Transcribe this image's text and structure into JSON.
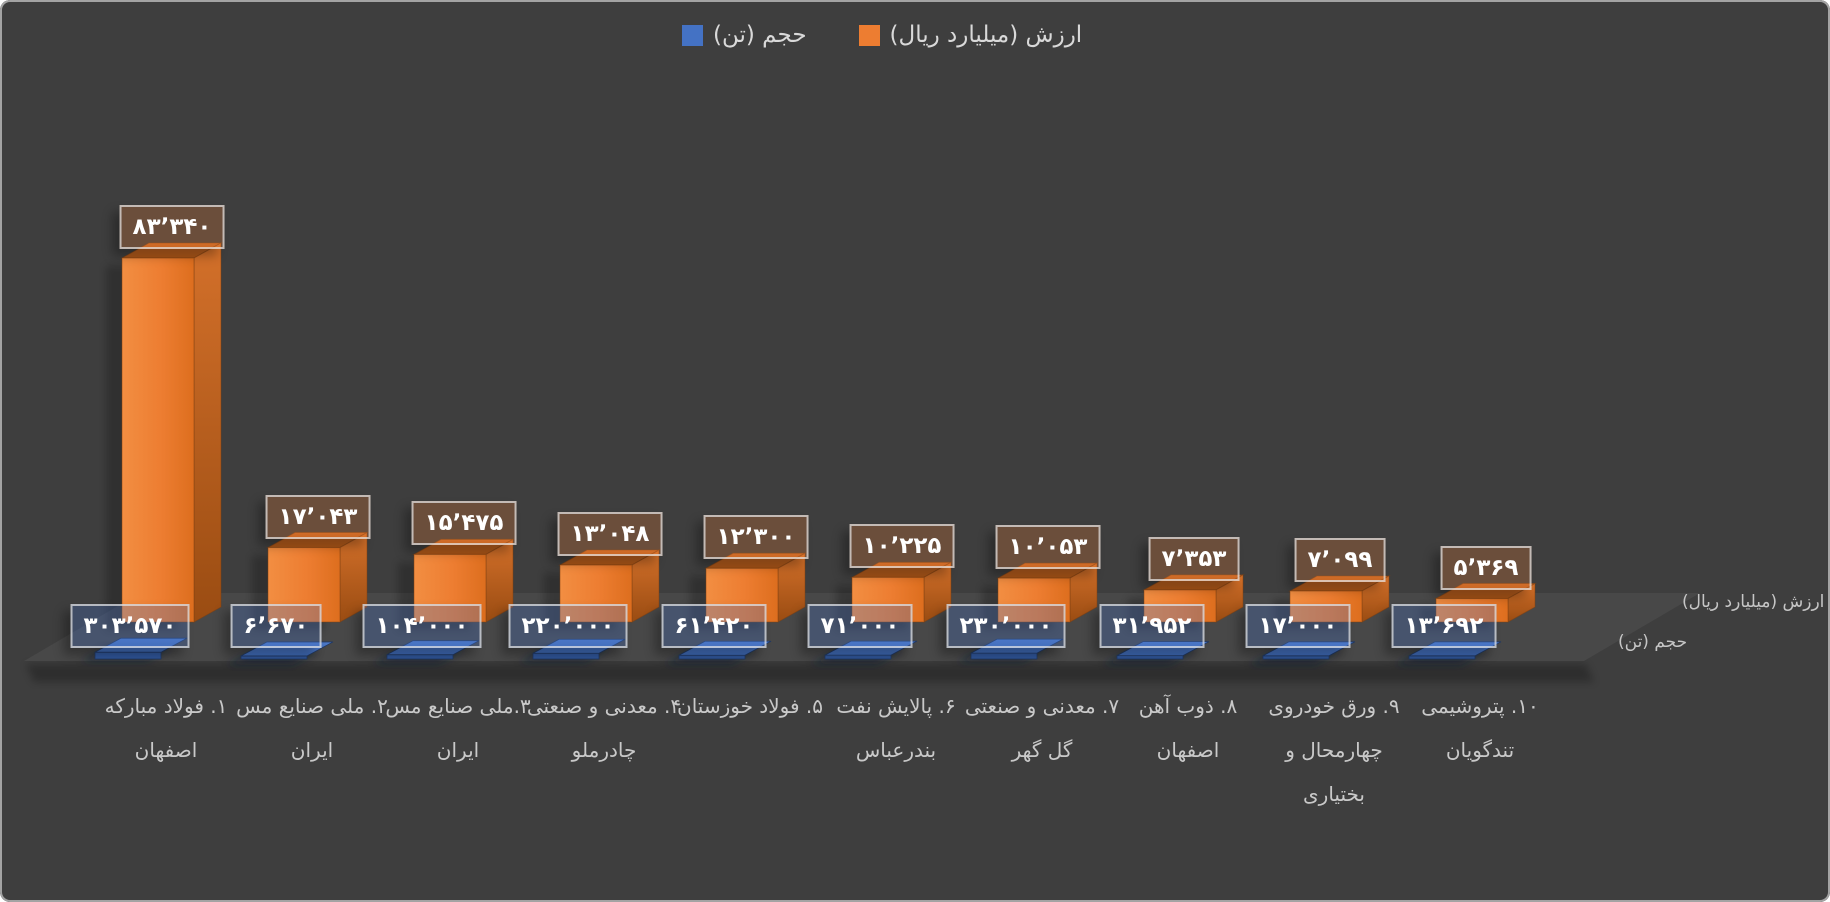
{
  "legend": {
    "items": [
      {
        "label": "حجم (تن)",
        "color": "#4472C4"
      },
      {
        "label": "ارزش (میلیارد ریال)",
        "color": "#ED7D31"
      }
    ]
  },
  "axis_titles": {
    "value": "ارزش (میلیارد ریال)",
    "volume": "حجم (تن)"
  },
  "colors": {
    "background": "#3E3E3E",
    "frame_border": "#A3A3A3",
    "value_series": "#ED7D31",
    "volume_series": "#4472C4",
    "floor": "#484848",
    "label_text": "#FFFFFF",
    "category_text": "#C9C9C9"
  },
  "chart_data": {
    "type": "bar",
    "projection": "3d",
    "legend_position": "top",
    "grid": false,
    "categories": [
      [
        "۱. فولاد مبارکه",
        "اصفهان"
      ],
      [
        "۲. ملی صنایع مس",
        "ایران"
      ],
      [
        "۳.ملی صنایع مس",
        "ایران"
      ],
      [
        "۴. معدنی و صنعتی",
        "چادرملو"
      ],
      [
        "۵. فولاد خوزستان"
      ],
      [
        "۶. پالایش نفت",
        "بندرعباس"
      ],
      [
        "۷. معدنی و صنعتی",
        "گل گهر"
      ],
      [
        "۸. ذوب آهن",
        "اصفهان"
      ],
      [
        "۹. ورق خودروی",
        "چهارمحال و",
        "بختیاری"
      ],
      [
        "۱۰. پتروشیمی",
        "تندگویان"
      ]
    ],
    "series": [
      {
        "name": "ارزش (میلیارد ریال)",
        "color": "#ED7D31",
        "row": "back",
        "values": [
          83340,
          17043,
          15475,
          13048,
          12300,
          10225,
          10053,
          7353,
          7099,
          5369
        ],
        "labels": [
          "۸۳٬۳۴۰",
          "۱۷٬۰۴۳",
          "۱۵٬۴۷۵",
          "۱۳٬۰۴۸",
          "۱۲٬۳۰۰",
          "۱۰٬۲۲۵",
          "۱۰٬۰۵۳",
          "۷٬۳۵۳",
          "۷٬۰۹۹",
          "۵٬۳۶۹"
        ]
      },
      {
        "name": "حجم (تن)",
        "color": "#4472C4",
        "row": "front",
        "values": [
          303570,
          6670,
          104000,
          220000,
          61420,
          71000,
          230000,
          31952,
          17000,
          13692
        ],
        "labels": [
          "۳۰۳٬۵۷۰",
          "۶٬۶۷۰",
          "۱۰۴٬۰۰۰",
          "۲۲۰٬۰۰۰",
          "۶۱٬۴۲۰",
          "۷۱٬۰۰۰",
          "۲۳۰٬۰۰۰",
          "۳۱٬۹۵۲",
          "۱۷٬۰۰۰",
          "۱۳٬۶۹۲"
        ]
      }
    ]
  }
}
